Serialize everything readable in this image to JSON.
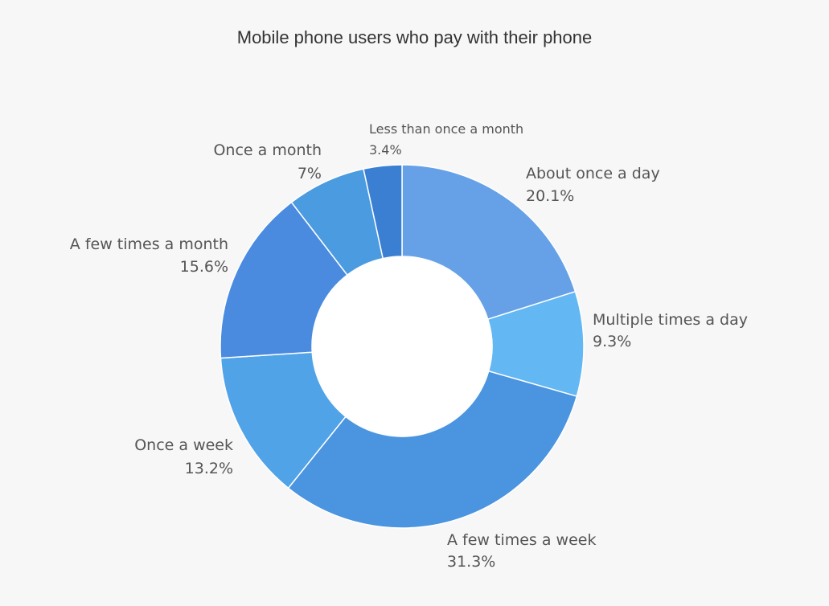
{
  "chart_data": {
    "type": "pie",
    "title": "Mobile phone users who pay with their phone",
    "slices": [
      {
        "label": "About once a day",
        "value_label": "20.1%",
        "value": 20.1,
        "color": "#66a1e8"
      },
      {
        "label": "Multiple times a day",
        "value_label": "9.3%",
        "value": 9.3,
        "color": "#63b7f3"
      },
      {
        "label": "A few times a week",
        "value_label": "31.3%",
        "value": 31.3,
        "color": "#4a94e0"
      },
      {
        "label": "Once a week",
        "value_label": "13.2%",
        "value": 13.2,
        "color": "#51a3e8"
      },
      {
        "label": "A few times a month",
        "value_label": "15.6%",
        "value": 15.6,
        "color": "#4a8be0"
      },
      {
        "label": "Once a month",
        "value_label": "7%",
        "value": 7,
        "color": "#4b9be0"
      },
      {
        "label": "Less than once a month",
        "value_label": "3.4%",
        "value": 3.4,
        "color": "#3a7fd1"
      }
    ]
  }
}
